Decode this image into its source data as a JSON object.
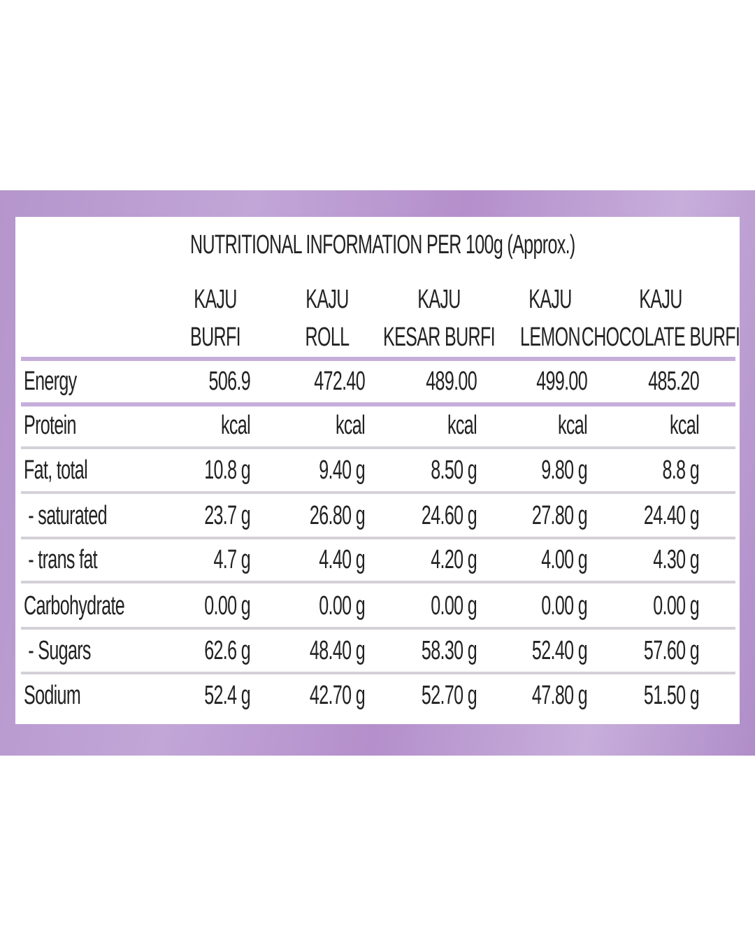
{
  "title": "NUTRITIONAL INFORMATION PER 100g (Approx.)",
  "columns": [
    {
      "line1": "KAJU",
      "line2": "BURFI"
    },
    {
      "line1": "KAJU",
      "line2": "ROLL"
    },
    {
      "line1": "KAJU",
      "line2": "KESAR BURFI"
    },
    {
      "line1": "KAJU",
      "line2": "LEMON"
    },
    {
      "line1": "KAJU",
      "line2": "CHOCOLATE BURFI"
    }
  ],
  "rows": [
    {
      "label": "Energy",
      "values": [
        "506.9",
        "472.40",
        "489.00",
        "499.00",
        "485.20"
      ]
    },
    {
      "label": "Protein",
      "values": [
        "kcal",
        "kcal",
        "kcal",
        "kcal",
        "kcal"
      ]
    },
    {
      "label": "Fat, total",
      "values": [
        "10.8 g",
        "9.40 g",
        "8.50 g",
        "9.80 g",
        "8.8 g"
      ]
    },
    {
      "label": " - saturated",
      "values": [
        "23.7 g",
        "26.80 g",
        "24.60 g",
        "27.80 g",
        "24.40 g"
      ]
    },
    {
      "label": " - trans fat",
      "values": [
        "4.7 g",
        "4.40 g",
        "4.20 g",
        "4.00 g",
        "4.30 g"
      ]
    },
    {
      "label": "Carbohydrate",
      "values": [
        "0.00 g",
        "0.00 g",
        "0.00 g",
        "0.00 g",
        "0.00 g"
      ]
    },
    {
      "label": " - Sugars",
      "values": [
        "62.6 g",
        "48.40 g",
        "58.30 g",
        "52.40 g",
        "57.60 g"
      ]
    },
    {
      "label": "Sodium",
      "values": [
        "52.4 g",
        "42.70 g",
        "52.70 g",
        "47.80 g",
        "51.50 g"
      ]
    }
  ],
  "colors": {
    "band": "#b998cf",
    "divider": "#c6aedb"
  }
}
